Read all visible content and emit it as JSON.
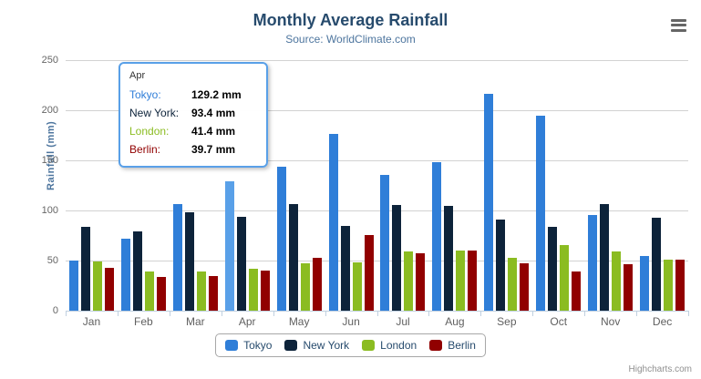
{
  "header": {
    "title": "Monthly Average Rainfall",
    "subtitle": "Source: WorldClimate.com"
  },
  "chart_data": {
    "type": "bar",
    "title": "Monthly Average Rainfall",
    "subtitle": "Source: WorldClimate.com",
    "xlabel": "",
    "ylabel": "Rainfall (mm)",
    "ylim": [
      0,
      250
    ],
    "yticks": [
      0,
      50,
      100,
      150,
      200,
      250
    ],
    "grid": true,
    "legend_position": "bottom",
    "categories": [
      "Jan",
      "Feb",
      "Mar",
      "Apr",
      "May",
      "Jun",
      "Jul",
      "Aug",
      "Sep",
      "Oct",
      "Nov",
      "Dec"
    ],
    "series": [
      {
        "name": "Tokyo",
        "color": "#2f7ed8",
        "values": [
          49.9,
          71.5,
          106.4,
          129.2,
          144.0,
          176.0,
          135.6,
          148.5,
          216.4,
          194.1,
          95.6,
          54.4
        ]
      },
      {
        "name": "New York",
        "color": "#0d233a",
        "values": [
          83.6,
          78.8,
          98.5,
          93.4,
          106.0,
          84.5,
          105.0,
          104.3,
          91.2,
          83.5,
          106.6,
          92.3
        ]
      },
      {
        "name": "London",
        "color": "#8bbc21",
        "values": [
          48.9,
          38.8,
          39.3,
          41.4,
          47.0,
          48.3,
          59.0,
          59.6,
          52.4,
          65.2,
          59.3,
          51.2
        ]
      },
      {
        "name": "Berlin",
        "color": "#910000",
        "values": [
          42.4,
          33.2,
          34.5,
          39.7,
          52.6,
          75.5,
          57.4,
          60.4,
          47.6,
          39.1,
          46.8,
          51.1
        ]
      }
    ],
    "highlight": {
      "category_index": 3,
      "series_index": 0,
      "hover_color": "#59a0e8"
    }
  },
  "tooltip": {
    "header": "Apr",
    "border_color": "#59a0e8",
    "rows": [
      {
        "label": "Tokyo:",
        "value": "129.2 mm",
        "color": "#2f7ed8"
      },
      {
        "label": "New York:",
        "value": "93.4 mm",
        "color": "#0d233a"
      },
      {
        "label": "London:",
        "value": "41.4 mm",
        "color": "#8bbc21"
      },
      {
        "label": "Berlin:",
        "value": "39.7 mm",
        "color": "#910000"
      }
    ]
  },
  "icons": {
    "export_menu": "hamburger-icon"
  },
  "credits": "Highcharts.com"
}
